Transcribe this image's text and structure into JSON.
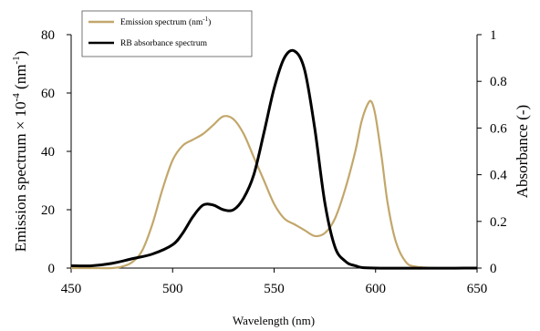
{
  "chart_data": {
    "type": "line",
    "xlabel": "Wavelength (nm)",
    "ylabel_left_prefix": "Emission spectrum × 10",
    "ylabel_left_exp": "-4",
    "ylabel_left_units_prefix": " (nm",
    "ylabel_left_units_exp": "-1",
    "ylabel_left_suffix": ")",
    "ylabel_right": "Absorbance (-)",
    "xlim": [
      450,
      650
    ],
    "ylim_left": [
      0,
      80
    ],
    "ylim_right": [
      0,
      1
    ],
    "x_ticks": [
      "450",
      "500",
      "550",
      "600",
      "650"
    ],
    "y_left_ticks": [
      "0",
      "20",
      "40",
      "60",
      "80"
    ],
    "y_right_ticks": [
      "0",
      "0.2",
      "0.4",
      "0.6",
      "0.8",
      "1"
    ],
    "grid": false,
    "legend_position": "top-left",
    "legend": {
      "emission": "Emission spectrum (nm",
      "emission_exp": "-1",
      "emission_close": ")",
      "absorbance": "RB absorbance spectrum"
    },
    "series": [
      {
        "name": "Emission spectrum (nm-1)",
        "axis": "left",
        "color": "#c2a76b",
        "x": [
          450,
          460,
          470,
          475,
          480,
          485,
          490,
          495,
          500,
          505,
          510,
          515,
          520,
          525,
          530,
          535,
          540,
          545,
          550,
          555,
          560,
          565,
          570,
          575,
          580,
          585,
          590,
          593,
          596,
          598,
          600,
          603,
          606,
          610,
          615,
          620,
          630,
          640,
          650
        ],
        "y": [
          0,
          0,
          0,
          0.5,
          2,
          6,
          15,
          27,
          37,
          42,
          44,
          46,
          49,
          52,
          51,
          46,
          38,
          30,
          22,
          17,
          15,
          13,
          11,
          12,
          17,
          27,
          40,
          50,
          56,
          57,
          52,
          38,
          22,
          9,
          2,
          0.5,
          0,
          0,
          0
        ]
      },
      {
        "name": "RB absorbance spectrum",
        "axis": "right",
        "color": "#000000",
        "x": [
          450,
          460,
          470,
          480,
          490,
          500,
          505,
          510,
          515,
          520,
          525,
          530,
          535,
          540,
          545,
          550,
          555,
          560,
          565,
          570,
          575,
          580,
          585,
          590,
          600,
          650
        ],
        "y": [
          0.01,
          0.01,
          0.02,
          0.04,
          0.06,
          0.1,
          0.15,
          0.22,
          0.27,
          0.27,
          0.25,
          0.25,
          0.3,
          0.4,
          0.58,
          0.77,
          0.9,
          0.93,
          0.85,
          0.6,
          0.28,
          0.09,
          0.03,
          0.01,
          0,
          0
        ]
      }
    ]
  }
}
